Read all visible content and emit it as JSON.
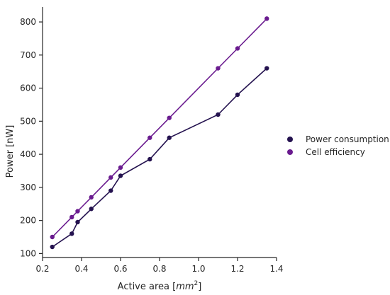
{
  "chart_data": {
    "type": "line",
    "title": "",
    "xlabel_prefix": "Active area [",
    "xlabel_unit": "mm",
    "xlabel_exponent": "2",
    "xlabel_suffix": "]",
    "ylabel": "Power [nW]",
    "xlim": [
      0.2,
      1.4
    ],
    "ylim": [
      88,
      845
    ],
    "x_ticks": [
      0.2,
      0.4,
      0.6,
      0.8,
      1.0,
      1.2,
      1.4
    ],
    "x_tick_labels": [
      "0.2",
      "0.4",
      "0.6",
      "0.8",
      "1.0",
      "1.2",
      "1.4"
    ],
    "y_ticks": [
      100,
      200,
      300,
      400,
      500,
      600,
      700,
      800
    ],
    "y_tick_labels": [
      "100",
      "200",
      "300",
      "400",
      "500",
      "600",
      "700",
      "800"
    ],
    "grid": false,
    "legend_position": "right",
    "series": [
      {
        "name": "Power consumption",
        "color": "#24124f",
        "x": [
          0.25,
          0.35,
          0.38,
          0.45,
          0.55,
          0.6,
          0.75,
          0.85,
          1.1,
          1.2,
          1.35
        ],
        "y": [
          120,
          160,
          195,
          235,
          290,
          335,
          385,
          450,
          520,
          580,
          660
        ]
      },
      {
        "name": "Cell efficiency",
        "color": "#6a1b8f",
        "x": [
          0.25,
          0.35,
          0.38,
          0.45,
          0.55,
          0.6,
          0.75,
          0.85,
          1.1,
          1.2,
          1.35
        ],
        "y": [
          150,
          210,
          228,
          270,
          330,
          360,
          450,
          510,
          660,
          720,
          810
        ]
      }
    ]
  }
}
